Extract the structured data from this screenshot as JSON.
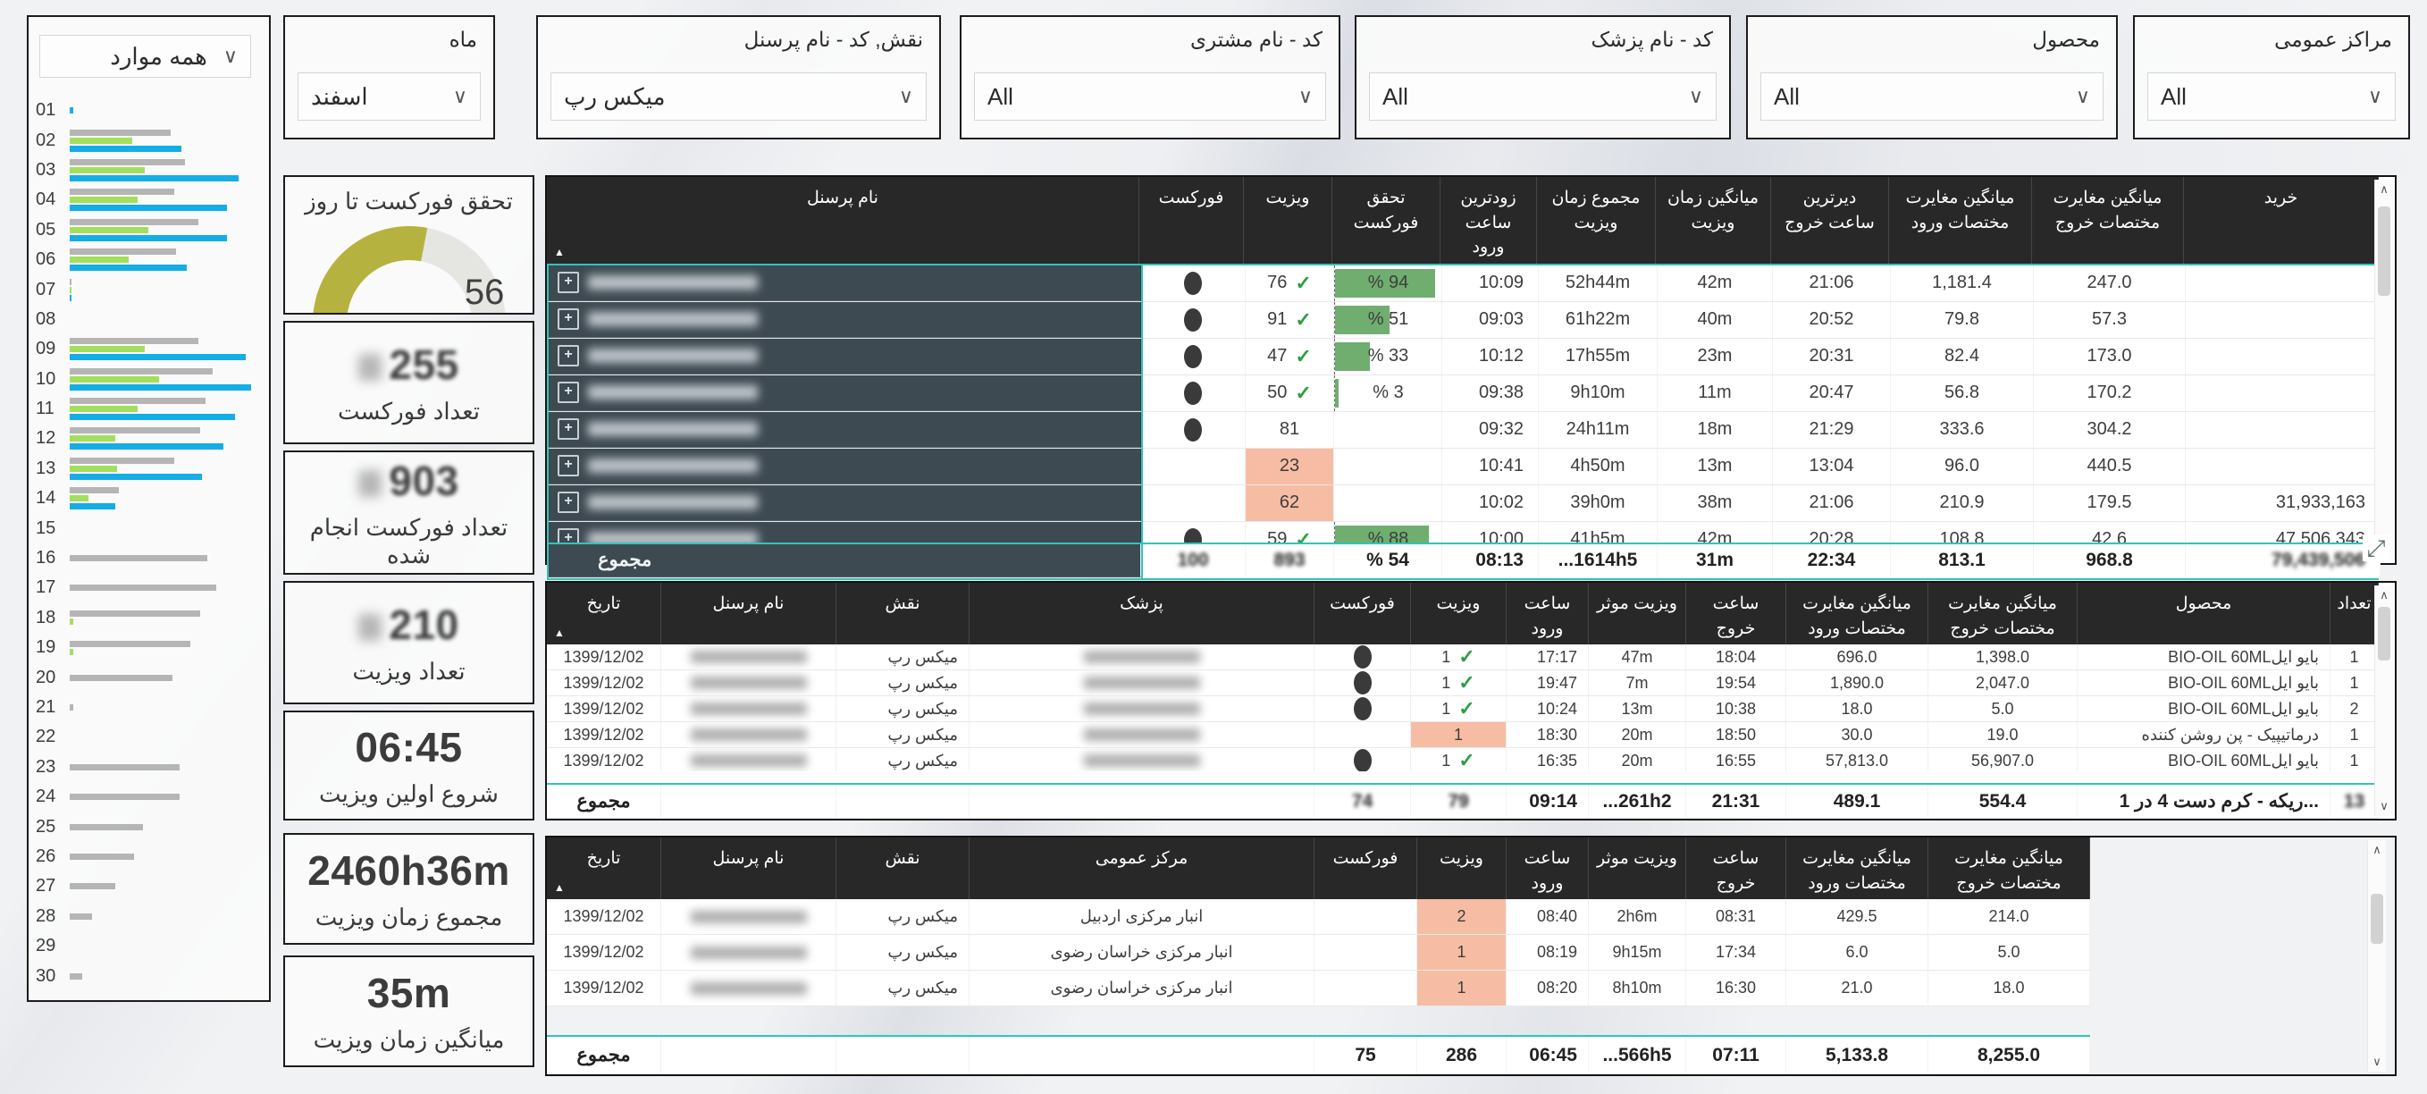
{
  "filters": {
    "all_items_value": "همه موارد",
    "cards": [
      {
        "label": "ماه",
        "value": "اسفند"
      },
      {
        "label": "نقش, کد - نام پرسنل",
        "value": "میکس رپ"
      },
      {
        "label": "کد - نام مشتری",
        "value": "All"
      },
      {
        "label": "کد - نام پزشک",
        "value": "All"
      },
      {
        "label": "محصول",
        "value": "All"
      },
      {
        "label": "مراکز عمومی",
        "value": "All"
      }
    ]
  },
  "kpis": [
    {
      "title": "تحقق فورکست تا روز",
      "value": "56 %",
      "percent": 56
    },
    {
      "value": "255",
      "label": "تعداد فورکست",
      "redacted_prefix": true
    },
    {
      "value": "903",
      "label": "تعداد فورکست انجام شده",
      "redacted_prefix": true
    },
    {
      "value": "210",
      "label": "تعداد ویزیت",
      "redacted_prefix": true
    },
    {
      "value": "06:45",
      "label": "شروع اولین ویزیت"
    },
    {
      "value": "2460h36m",
      "label": "مجموع زمان ویزیت"
    },
    {
      "value": "35m",
      "label": "میانگین زمان ویزیت"
    }
  ],
  "chart_data": {
    "type": "bar",
    "orientation": "horizontal",
    "title": "",
    "note": "daily grouped bars; axis unlabeled, values are relative bar lengths in % of plot width",
    "categories": [
      "01",
      "02",
      "03",
      "04",
      "05",
      "06",
      "07",
      "08",
      "09",
      "10",
      "11",
      "12",
      "13",
      "14",
      "15",
      "16",
      "17",
      "18",
      "19",
      "20",
      "21",
      "22",
      "23",
      "24",
      "25",
      "26",
      "27",
      "28",
      "29",
      "30"
    ],
    "series": [
      {
        "name": "series-gray",
        "color": "#b5b5b5",
        "values": [
          0,
          55,
          63,
          57,
          70,
          58,
          1,
          0,
          70,
          78,
          74,
          71,
          57,
          27,
          0,
          75,
          80,
          71,
          66,
          56,
          2,
          0,
          60,
          60,
          40,
          35,
          25,
          12,
          0,
          7
        ]
      },
      {
        "name": "series-green",
        "color": "#a3df5d",
        "values": [
          0,
          34,
          41,
          37,
          43,
          32,
          1,
          0,
          41,
          49,
          37,
          25,
          26,
          10,
          0,
          0,
          0,
          2,
          2,
          0,
          0,
          0,
          0,
          0,
          0,
          0,
          0,
          0,
          0,
          0
        ]
      },
      {
        "name": "series-blue",
        "color": "#15ade5",
        "values": [
          2,
          61,
          92,
          86,
          86,
          64,
          1,
          0,
          96,
          99,
          90,
          84,
          72,
          25,
          0,
          0,
          0,
          0,
          0,
          0,
          0,
          0,
          0,
          0,
          0,
          0,
          0,
          0,
          0,
          0
        ]
      }
    ]
  },
  "tables": [
    {
      "name": "personnel-summary",
      "columns": [
        {
          "label": "نام پرسنل",
          "sort": true
        },
        {
          "label": "فورکست"
        },
        {
          "label": "ویزیت"
        },
        {
          "label": "تحقق فورکست"
        },
        {
          "label": "زودترین ساعت ورود"
        },
        {
          "label": "مجموع زمان ویزیت"
        },
        {
          "label": "میانگین زمان ویزیت"
        },
        {
          "label": "دیرترین ساعت خروج"
        },
        {
          "label": "میانگین مغایرت مختصات ورود"
        },
        {
          "label": "میانگین مغایرت مختصات خروج"
        },
        {
          "label": "خرید"
        }
      ],
      "rows": [
        [
          {
            "redacted": true
          },
          {
            "dot": true
          },
          {
            "t": "76",
            "check": true
          },
          {
            "t": "94 %",
            "bar": 94
          },
          {
            "t": "10:09"
          },
          {
            "t": "52h44m"
          },
          {
            "t": "42m"
          },
          {
            "t": "21:06"
          },
          {
            "t": "1,181.4"
          },
          {
            "t": "247.0"
          },
          null
        ],
        [
          {
            "redacted": true
          },
          {
            "dot": true
          },
          {
            "t": "91",
            "check": true
          },
          {
            "t": "51 %",
            "bar": 51
          },
          {
            "t": "09:03"
          },
          {
            "t": "61h22m"
          },
          {
            "t": "40m"
          },
          {
            "t": "20:52"
          },
          {
            "t": "79.8"
          },
          {
            "t": "57.3"
          },
          null
        ],
        [
          {
            "redacted": true
          },
          {
            "dot": true
          },
          {
            "t": "47",
            "check": true
          },
          {
            "t": "33 %",
            "bar": 33
          },
          {
            "t": "10:12"
          },
          {
            "t": "17h55m"
          },
          {
            "t": "23m"
          },
          {
            "t": "20:31"
          },
          {
            "t": "82.4"
          },
          {
            "t": "173.0"
          },
          null
        ],
        [
          {
            "redacted": true
          },
          {
            "dot": true
          },
          {
            "t": "50",
            "check": true
          },
          {
            "t": "3 %",
            "bar": 3
          },
          {
            "t": "09:38"
          },
          {
            "t": "9h10m"
          },
          {
            "t": "11m"
          },
          {
            "t": "20:47"
          },
          {
            "t": "56.8"
          },
          {
            "t": "170.2"
          },
          null
        ],
        [
          {
            "redacted": true
          },
          {
            "dot": true
          },
          {
            "t": "81"
          },
          null,
          {
            "t": "09:32"
          },
          {
            "t": "24h11m"
          },
          {
            "t": "18m"
          },
          {
            "t": "21:29"
          },
          {
            "t": "333.6"
          },
          {
            "t": "304.2"
          },
          null
        ],
        [
          {
            "redacted": true
          },
          null,
          {
            "t": "23",
            "salmon": true
          },
          null,
          {
            "t": "10:41"
          },
          {
            "t": "4h50m"
          },
          {
            "t": "13m"
          },
          {
            "t": "13:04"
          },
          {
            "t": "96.0"
          },
          {
            "t": "440.5"
          },
          null
        ],
        [
          {
            "redacted": true
          },
          null,
          {
            "t": "62",
            "salmon": true
          },
          null,
          {
            "t": "10:02"
          },
          {
            "t": "39h0m"
          },
          {
            "t": "38m"
          },
          {
            "t": "21:06"
          },
          {
            "t": "210.9"
          },
          {
            "t": "179.5"
          },
          {
            "t": "31,933,163"
          }
        ],
        [
          {
            "redacted": true
          },
          {
            "dot": true
          },
          {
            "t": "59",
            "check": true
          },
          {
            "t": "88 %",
            "bar": 88
          },
          {
            "t": "10:00"
          },
          {
            "t": "41h5m"
          },
          {
            "t": "42m"
          },
          {
            "t": "20:28"
          },
          {
            "t": "108.8"
          },
          {
            "t": "42.6"
          },
          {
            "t": "47,506,343"
          }
        ]
      ],
      "total": [
        {
          "t": "مجموع"
        },
        {
          "t": "100",
          "blur": true
        },
        {
          "t": "893",
          "blur": true
        },
        {
          "t": "54 %"
        },
        {
          "t": "08:13"
        },
        {
          "t": "1614h5..."
        },
        {
          "t": "31m"
        },
        {
          "t": "22:34"
        },
        {
          "t": "813.1"
        },
        {
          "t": "968.8"
        },
        {
          "t": "79,439,506",
          "blur": true
        }
      ]
    },
    {
      "name": "doctor-visits",
      "columns": [
        {
          "label": "تاریخ",
          "sort": true
        },
        {
          "label": "نام پرسنل"
        },
        {
          "label": "نقش"
        },
        {
          "label": "پزشک"
        },
        {
          "label": "فورکست"
        },
        {
          "label": "ویزیت"
        },
        {
          "label": "ساعت ورود"
        },
        {
          "label": "ویزیت موثر"
        },
        {
          "label": "ساعت خروج"
        },
        {
          "label": "میانگین مغایرت مختصات ورود"
        },
        {
          "label": "میانگین مغایرت مختصات خروج"
        },
        {
          "label": "محصول"
        },
        {
          "label": "تعداد"
        }
      ],
      "rows": [
        [
          {
            "t": "1399/12/02"
          },
          {
            "redacted": true
          },
          {
            "t": "میکس رپ"
          },
          {
            "redacted": true
          },
          {
            "dot": true
          },
          {
            "t": "1",
            "check": true
          },
          {
            "t": "17:17"
          },
          {
            "t": "47m"
          },
          {
            "t": "18:04"
          },
          {
            "t": "696.0"
          },
          {
            "t": "1,398.0"
          },
          {
            "t": "بایو ایلBIO-OIL 60ML"
          },
          {
            "t": "1"
          }
        ],
        [
          {
            "t": "1399/12/02"
          },
          {
            "redacted": true
          },
          {
            "t": "میکس رپ"
          },
          {
            "redacted": true
          },
          {
            "dot": true
          },
          {
            "t": "1",
            "check": true
          },
          {
            "t": "19:47"
          },
          {
            "t": "7m"
          },
          {
            "t": "19:54"
          },
          {
            "t": "1,890.0"
          },
          {
            "t": "2,047.0"
          },
          {
            "t": "بایو ایلBIO-OIL 60ML"
          },
          {
            "t": "1"
          }
        ],
        [
          {
            "t": "1399/12/02"
          },
          {
            "redacted": true
          },
          {
            "t": "میکس رپ"
          },
          {
            "redacted": true
          },
          {
            "dot": true
          },
          {
            "t": "1",
            "check": true
          },
          {
            "t": "10:24"
          },
          {
            "t": "13m"
          },
          {
            "t": "10:38"
          },
          {
            "t": "18.0"
          },
          {
            "t": "5.0"
          },
          {
            "t": "بایو ایلBIO-OIL 60ML"
          },
          {
            "t": "2"
          }
        ],
        [
          {
            "t": "1399/12/02"
          },
          {
            "redacted": true
          },
          {
            "t": "میکس رپ"
          },
          {
            "redacted": true
          },
          null,
          {
            "t": "1",
            "salmon": true
          },
          {
            "t": "18:30"
          },
          {
            "t": "20m"
          },
          {
            "t": "18:50"
          },
          {
            "t": "30.0"
          },
          {
            "t": "19.0"
          },
          {
            "t": "درماتیپیک - پن روشن کننده"
          },
          {
            "t": "1"
          }
        ],
        [
          {
            "t": "1399/12/02"
          },
          {
            "redacted": true
          },
          {
            "t": "میکس رپ"
          },
          {
            "redacted": true
          },
          {
            "dot": true
          },
          {
            "t": "1",
            "check": true
          },
          {
            "t": "16:35"
          },
          {
            "t": "20m"
          },
          {
            "t": "16:55"
          },
          {
            "t": "57,813.0"
          },
          {
            "t": "56,907.0"
          },
          {
            "t": "بایو ایلBIO-OIL 60ML"
          },
          {
            "t": "1"
          }
        ]
      ],
      "total": [
        {
          "t": "مجموع"
        },
        null,
        null,
        null,
        {
          "t": "74",
          "blur": true
        },
        {
          "t": "79",
          "blur": true
        },
        {
          "t": "09:14"
        },
        {
          "t": "261h2..."
        },
        {
          "t": "21:31"
        },
        {
          "t": "489.1"
        },
        {
          "t": "554.4"
        },
        {
          "t": "...ریکه - کرم دست 4 در 1"
        },
        {
          "t": "13",
          "blur": true
        }
      ]
    },
    {
      "name": "public-center-visits",
      "columns": [
        {
          "label": "تاریخ",
          "sort": true
        },
        {
          "label": "نام پرسنل"
        },
        {
          "label": "نقش"
        },
        {
          "label": "مرکز عمومی"
        },
        {
          "label": "فورکست"
        },
        {
          "label": "ویزیت"
        },
        {
          "label": "ساعت ورود"
        },
        {
          "label": "ویزیت موثر"
        },
        {
          "label": "ساعت خروج"
        },
        {
          "label": "میانگین مغایرت مختصات ورود"
        },
        {
          "label": "میانگین مغایرت مختصات خروج"
        }
      ],
      "rows": [
        [
          {
            "t": "1399/12/02"
          },
          {
            "redacted": true
          },
          {
            "t": "میکس رپ"
          },
          {
            "t": "انبار مرکزی  اردبیل"
          },
          null,
          {
            "t": "2",
            "salmon": true
          },
          {
            "t": "08:40"
          },
          {
            "t": "2h6m"
          },
          {
            "t": "08:31"
          },
          {
            "t": "429.5"
          },
          {
            "t": "214.0"
          }
        ],
        [
          {
            "t": "1399/12/02"
          },
          {
            "redacted": true
          },
          {
            "t": "میکس رپ"
          },
          {
            "t": "انبار مرکزی  خراسان رضوی"
          },
          null,
          {
            "t": "1",
            "salmon": true
          },
          {
            "t": "08:19"
          },
          {
            "t": "9h15m"
          },
          {
            "t": "17:34"
          },
          {
            "t": "6.0"
          },
          {
            "t": "5.0"
          }
        ],
        [
          {
            "t": "1399/12/02"
          },
          {
            "redacted": true
          },
          {
            "t": "میکس رپ"
          },
          {
            "t": "انبار مرکزی  خراسان رضوی"
          },
          null,
          {
            "t": "1",
            "salmon": true
          },
          {
            "t": "08:20"
          },
          {
            "t": "8h10m"
          },
          {
            "t": "16:30"
          },
          {
            "t": "21.0"
          },
          {
            "t": "18.0"
          }
        ]
      ],
      "total": [
        {
          "t": "مجموع"
        },
        null,
        null,
        null,
        {
          "t": "75"
        },
        {
          "t": "286"
        },
        {
          "t": "06:45"
        },
        {
          "t": "566h5..."
        },
        {
          "t": "07:11"
        },
        {
          "t": "5,133.8"
        },
        {
          "t": "8,255.0"
        }
      ]
    }
  ]
}
